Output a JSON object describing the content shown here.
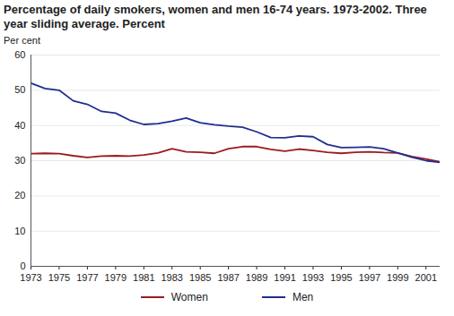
{
  "chart_data": {
    "type": "line",
    "title": "Percentage of daily smokers, women and men 16-74 years. 1973-2002. Three year sliding average. Percent",
    "y_label": "Per cent",
    "x": [
      1973,
      1974,
      1975,
      1976,
      1977,
      1978,
      1979,
      1980,
      1981,
      1982,
      1983,
      1984,
      1985,
      1986,
      1987,
      1988,
      1989,
      1990,
      1991,
      1992,
      1993,
      1994,
      1995,
      1996,
      1997,
      1998,
      1999,
      2000,
      2001,
      2002
    ],
    "series": [
      {
        "name": "Women",
        "color": "#9b1b1f",
        "values": [
          32,
          32.1,
          32,
          31.4,
          30.9,
          31.3,
          31.4,
          31.3,
          31.6,
          32.2,
          33.4,
          32.5,
          32.4,
          32.1,
          33.4,
          34,
          34,
          33.2,
          32.7,
          33.3,
          32.9,
          32.4,
          32.1,
          32.4,
          32.5,
          32.3,
          32.2,
          31.2,
          30.5,
          29.7
        ]
      },
      {
        "name": "Men",
        "color": "#1f2f8f",
        "values": [
          52,
          50.5,
          50,
          47,
          46,
          44,
          43.5,
          41.5,
          40.3,
          40.5,
          41.2,
          42.1,
          40.8,
          40.2,
          39.8,
          39.5,
          38.2,
          36.6,
          36.5,
          37,
          36.8,
          34.6,
          33.7,
          33.8,
          33.9,
          33.4,
          32.2,
          31,
          30,
          29.5
        ]
      }
    ],
    "xlim": [
      1973,
      2002
    ],
    "xticks": [
      1973,
      1975,
      1977,
      1979,
      1981,
      1983,
      1985,
      1987,
      1989,
      1991,
      1993,
      1995,
      1997,
      1999,
      2001
    ],
    "ylim": [
      0,
      60
    ],
    "yticks": [
      0,
      10,
      20,
      30,
      40,
      50,
      60
    ],
    "grid": true,
    "legend": "bottom"
  }
}
